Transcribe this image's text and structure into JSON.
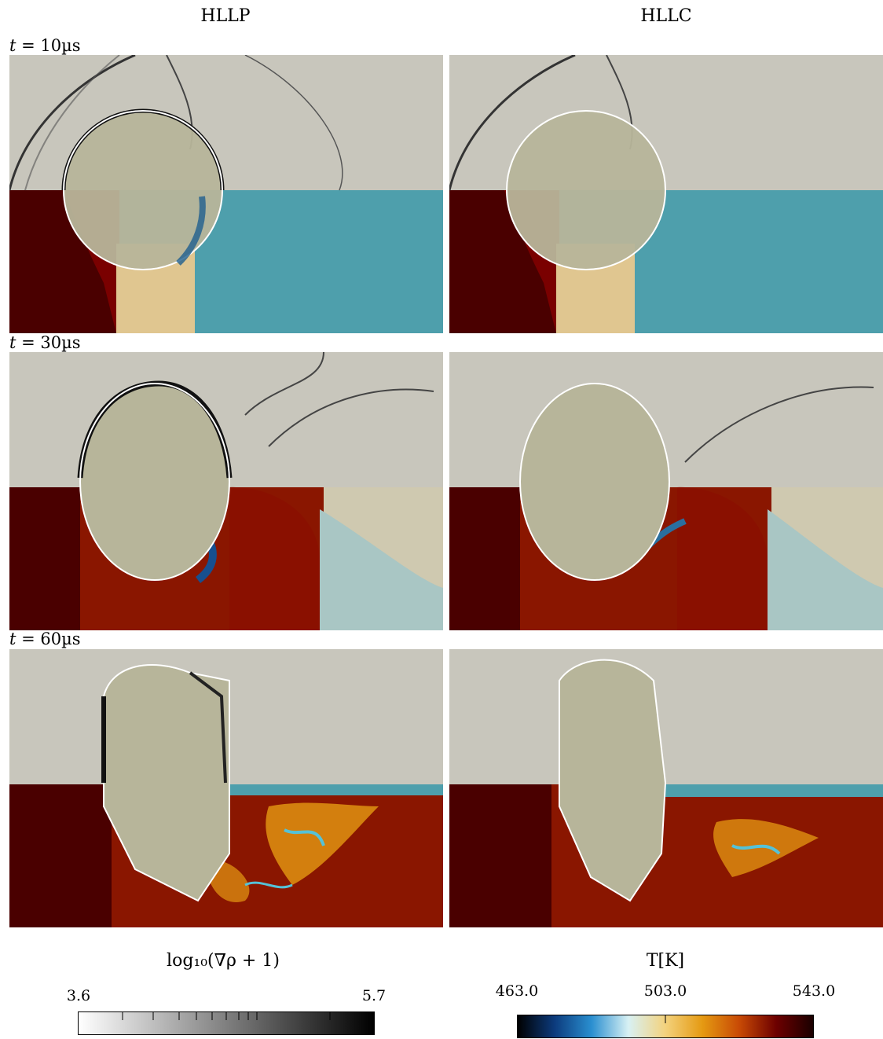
{
  "columns": [
    "HLLP",
    "HLLC"
  ],
  "rows": [
    {
      "label": "t = 10µs"
    },
    {
      "label": "t = 30µs"
    },
    {
      "label": "t = 60µs"
    }
  ],
  "time_labels": {
    "t1_num": "10",
    "t2_num": "30",
    "t3_num": "60",
    "unit": "µs",
    "var": "t",
    "eq": " = "
  },
  "colorbar_gradient": {
    "title": "log₁₀(∇ρ + 1)",
    "min": "3.6",
    "max": "5.7",
    "colors": [
      "#ffffff",
      "#000000"
    ]
  },
  "colorbar_temperature": {
    "title": "T[K]",
    "ticks": [
      "463.0",
      "503.0",
      "543.0"
    ],
    "colors": [
      "#000000",
      "#0c3b7d",
      "#2a8fd0",
      "#d8f1f4",
      "#f3d27d",
      "#e59a12",
      "#c84a05",
      "#6d0000",
      "#1a0000"
    ]
  },
  "colors": {
    "schlieren_bg": "#c8c6bc",
    "cold_gas": "#4e9fac",
    "hot_gas": "#7a0000",
    "droplet": "#b7b59a",
    "interface": "#ffffff"
  }
}
